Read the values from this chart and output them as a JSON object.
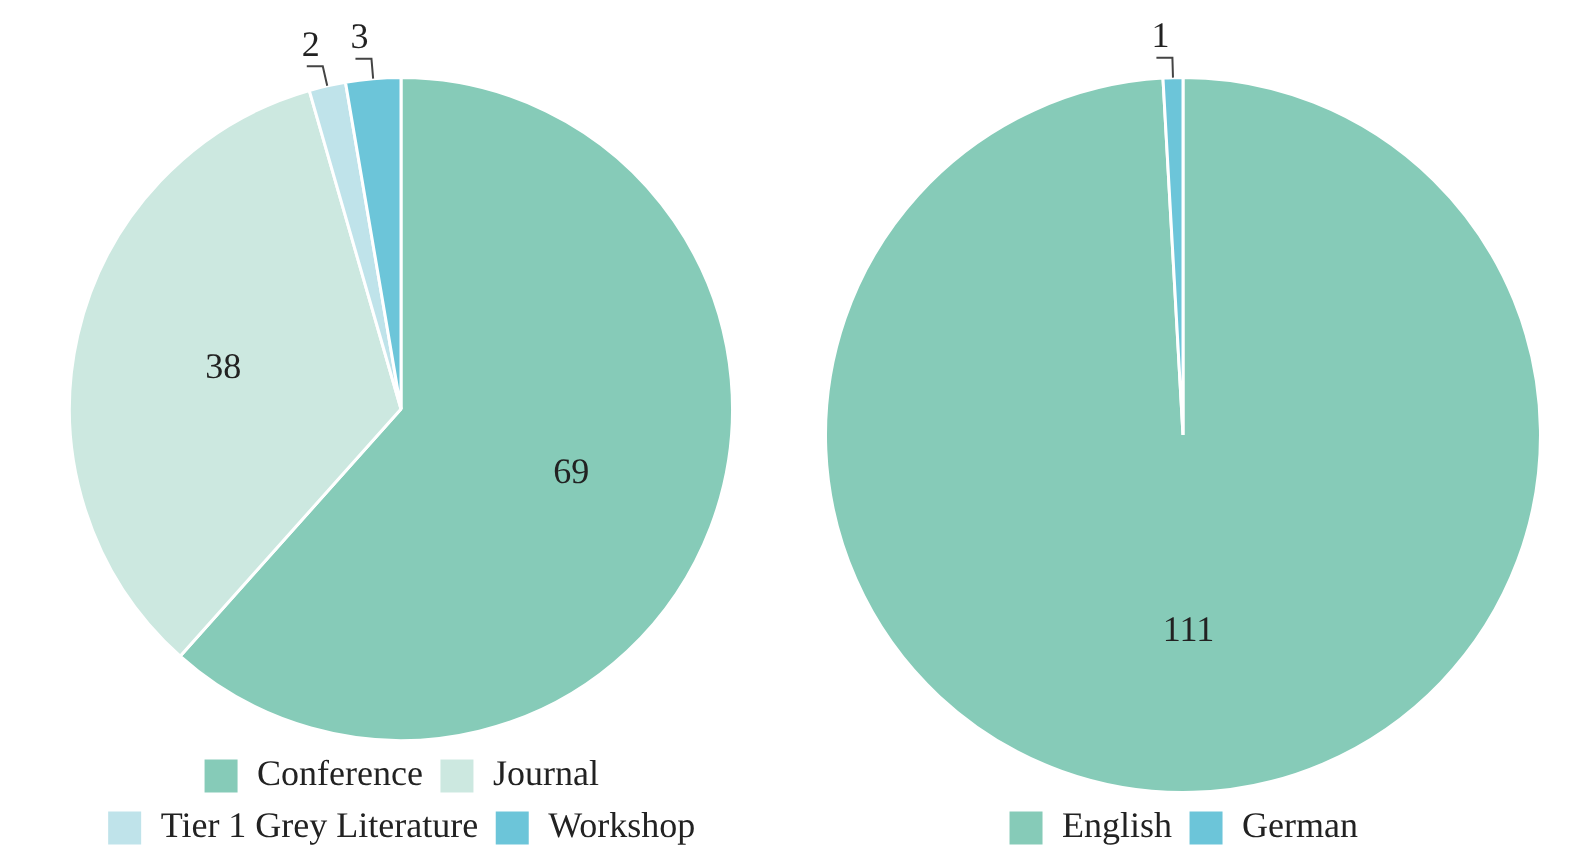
{
  "chart_data": [
    {
      "type": "pie",
      "categories": [
        "Conference",
        "Journal",
        "Tier 1 Grey Literature",
        "Workshop"
      ],
      "values": [
        69,
        38,
        2,
        3
      ],
      "colors": [
        "#86cbb8",
        "#cce8e0",
        "#bfe3ea",
        "#6cc5d9"
      ],
      "data_labels": true,
      "legend": "bottom"
    },
    {
      "type": "pie",
      "categories": [
        "English",
        "German"
      ],
      "values": [
        111,
        1
      ],
      "colors": [
        "#86cbb8",
        "#6cc5d9"
      ],
      "data_labels": true,
      "legend": "bottom"
    }
  ]
}
